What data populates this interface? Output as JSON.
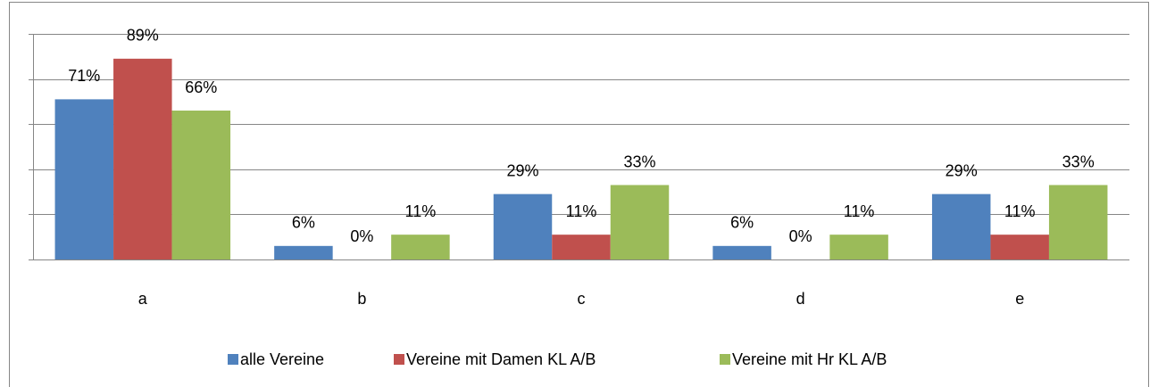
{
  "chart_data": {
    "type": "bar",
    "categories": [
      "a",
      "b",
      "c",
      "d",
      "e"
    ],
    "series": [
      {
        "name": "alle Vereine",
        "color": "#4f81bd",
        "values": [
          71,
          6,
          29,
          6,
          29
        ],
        "value_labels": [
          "71%",
          "6%",
          "29%",
          "6%",
          "29%"
        ]
      },
      {
        "name": "Vereine mit Damen KL A/B",
        "color": "#c0504d",
        "values": [
          89,
          0,
          11,
          0,
          11
        ],
        "value_labels": [
          "89%",
          "0%",
          "11%",
          "0%",
          "11%"
        ]
      },
      {
        "name": "Vereine mit Hr KL A/B",
        "color": "#9bbb59",
        "values": [
          66,
          11,
          33,
          11,
          33
        ],
        "value_labels": [
          "66%",
          "11%",
          "33%",
          "11%",
          "33%"
        ]
      }
    ],
    "ylim": [
      0,
      100
    ],
    "yticks": [
      0,
      20,
      40,
      60,
      80,
      100
    ],
    "grid": true,
    "legend": "bottom"
  }
}
